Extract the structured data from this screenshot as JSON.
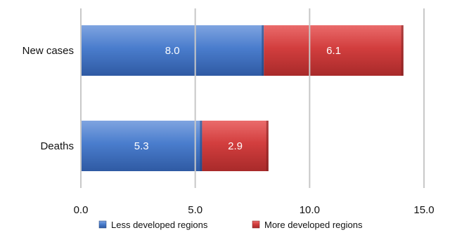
{
  "chart_data": {
    "type": "bar",
    "orientation": "horizontal",
    "stacked": true,
    "categories": [
      "New cases",
      "Deaths"
    ],
    "series": [
      {
        "name": "Less developed regions",
        "values": [
          8.0,
          5.3
        ],
        "labels": [
          "8.0",
          "5.3"
        ]
      },
      {
        "name": "More developed regions",
        "values": [
          6.1,
          2.9
        ],
        "labels": [
          "6.1",
          "2.9"
        ]
      }
    ],
    "xlim": [
      0,
      15
    ],
    "x_ticks": [
      "0.0",
      "5.0",
      "10.0",
      "15.0"
    ],
    "x_tick_values": [
      0,
      5,
      10,
      15
    ],
    "grid": "vertical",
    "legend_position": "bottom",
    "colors": [
      "#3f72c4",
      "#cf3a3a"
    ]
  }
}
